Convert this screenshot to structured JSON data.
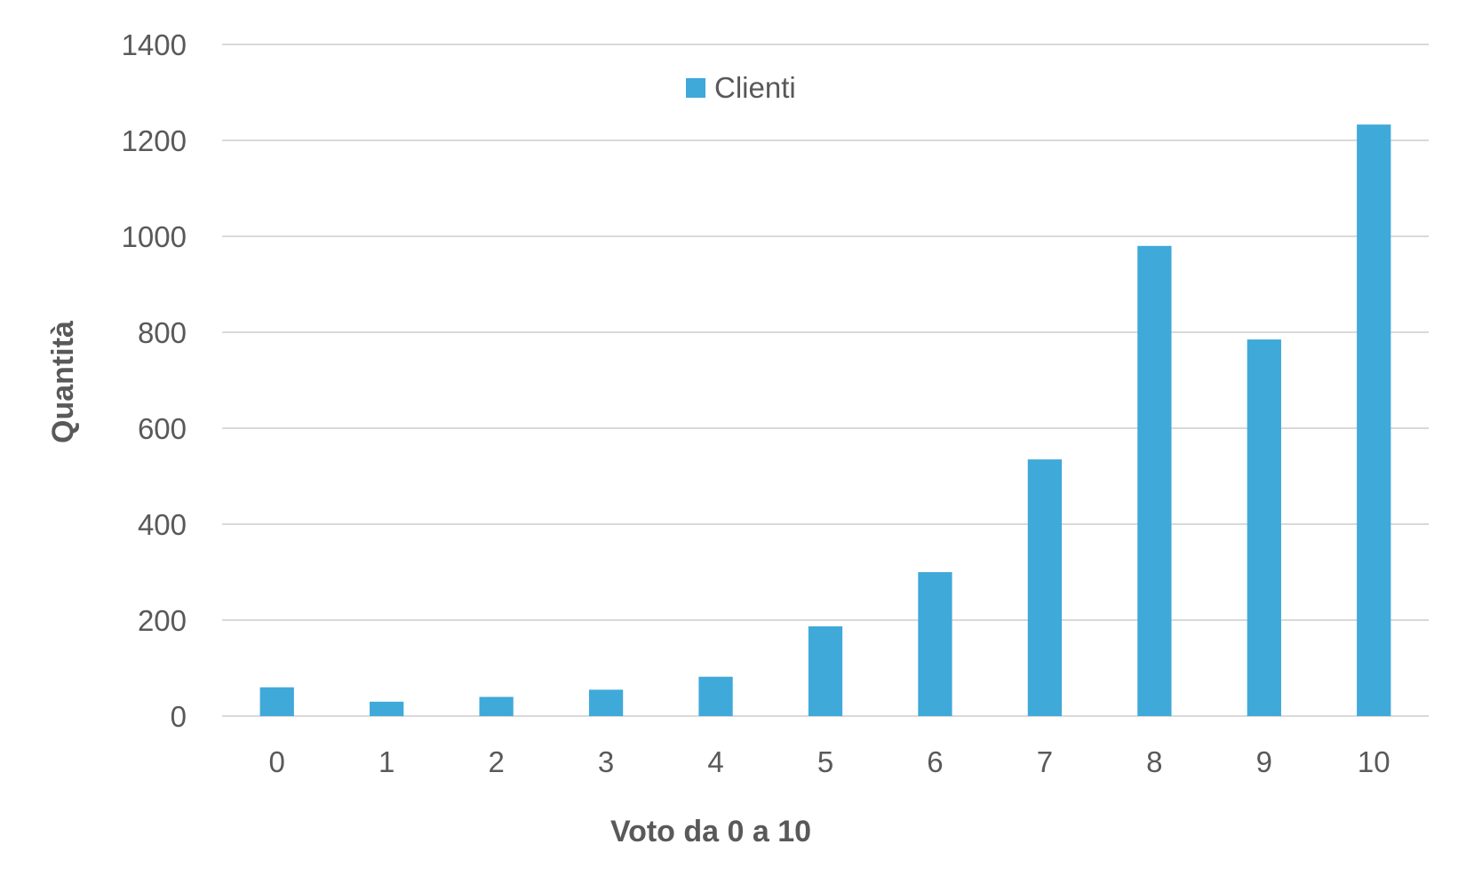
{
  "chart_data": {
    "type": "bar",
    "title": "",
    "xlabel": "Voto da 0 a 10",
    "ylabel": "Quantità",
    "categories": [
      "0",
      "1",
      "2",
      "3",
      "4",
      "5",
      "6",
      "7",
      "8",
      "9",
      "10"
    ],
    "series": [
      {
        "name": "Clienti",
        "values": [
          60,
          30,
          40,
          55,
          82,
          187,
          300,
          535,
          980,
          785,
          1233
        ]
      }
    ],
    "ylim": [
      0,
      1400
    ],
    "yticks": [
      "0",
      "200",
      "400",
      "600",
      "800",
      "1000",
      "1200",
      "1400"
    ],
    "grid": true,
    "legend_position": "top-center",
    "colors": {
      "bar": "#3fa9d9",
      "grid": "#d9d9d9",
      "axis_text": "#595959"
    }
  }
}
